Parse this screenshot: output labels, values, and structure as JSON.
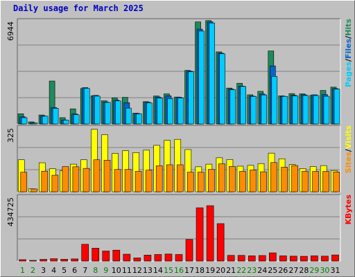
{
  "colors": {
    "hits": "#1f8a5c",
    "files": "#0066cc",
    "pages": "#00ccff",
    "visits": "#ffff00",
    "sites": "#ff8c00",
    "kbytes": "#ff0000",
    "weekend_label": "#008000",
    "weekday_label": "#000000",
    "panel_bg": "#c0c0c0"
  },
  "chart_data": {
    "type": "bar",
    "title": "Daily usage for March 2025",
    "categories": [
      "1",
      "2",
      "3",
      "4",
      "5",
      "6",
      "7",
      "8",
      "9",
      "10",
      "11",
      "12",
      "13",
      "14",
      "15",
      "16",
      "17",
      "18",
      "19",
      "20",
      "21",
      "22",
      "23",
      "24",
      "25",
      "26",
      "27",
      "28",
      "29",
      "30",
      "31"
    ],
    "weekend_days": [
      "1",
      "2",
      "8",
      "9",
      "15",
      "16",
      "22",
      "23",
      "29",
      "30"
    ],
    "panels": [
      {
        "id": "hits-files-pages",
        "ymax_label": "6944",
        "ymax": 6944,
        "legend": [
          "Pages",
          "/",
          "Files",
          "/",
          "Hits"
        ],
        "series": [
          {
            "name": "Hits",
            "values": [
              680,
              140,
              600,
              2870,
              420,
              1010,
              2370,
              1880,
              1550,
              1750,
              1780,
              720,
              1490,
              1870,
              2010,
              1800,
              3580,
              6820,
              6910,
              4820,
              2400,
              2720,
              1950,
              2180,
              4880,
              1880,
              2030,
              2010,
              1910,
              2240,
              2460
            ]
          },
          {
            "name": "Files",
            "values": [
              480,
              70,
              530,
              1100,
              270,
              670,
              2430,
              1910,
              1460,
              1590,
              1420,
              700,
              1450,
              1800,
              1880,
              1790,
              3530,
              6340,
              6830,
              4740,
              2330,
              2530,
              1870,
              2000,
              3880,
              1850,
              1920,
              1950,
              1950,
              1960,
              2360
            ]
          },
          {
            "name": "Pages",
            "values": [
              420,
              60,
              520,
              1050,
              260,
              620,
              2380,
              1860,
              1440,
              1540,
              1060,
              680,
              1410,
              1730,
              1690,
              1740,
              3490,
              6210,
              6750,
              4690,
              2290,
              2510,
              1840,
              1940,
              3180,
              1840,
              1880,
              1900,
              1900,
              1850,
              2330
            ]
          }
        ]
      },
      {
        "id": "visits-sites",
        "ymax_label": "325",
        "ymax": 325,
        "legend": [
          "Sites",
          "/",
          "Visits"
        ],
        "series": [
          {
            "name": "Visits",
            "values": [
              160,
              15,
              145,
              115,
              105,
              138,
              160,
              312,
              285,
              192,
              205,
              196,
              208,
              232,
              257,
              262,
              211,
              125,
              138,
              170,
              161,
              128,
              132,
              141,
              193,
              165,
              136,
              116,
              126,
              131,
              106
            ]
          },
          {
            "name": "Sites",
            "values": [
              98,
              14,
              103,
              83,
              126,
              125,
              117,
              160,
              158,
              112,
              112,
              102,
              108,
              130,
              135,
              135,
              98,
              98,
              112,
              140,
              127,
              102,
              109,
              100,
              146,
              123,
              131,
              103,
              102,
              102,
              99
            ]
          }
        ]
      },
      {
        "id": "kbytes",
        "ymax_label": "434725",
        "ymax": 434725,
        "legend": [
          "KBytes"
        ],
        "series": [
          {
            "name": "KBytes",
            "values": [
              9500,
              4500,
              11500,
              16000,
              12000,
              14500,
              112000,
              86000,
              67000,
              73000,
              46000,
              21000,
              40000,
              44000,
              47000,
              44000,
              144000,
              356000,
              370000,
              250000,
              38000,
              38000,
              35000,
              37000,
              55000,
              35000,
              33000,
              32000,
              35000,
              33000,
              41000
            ]
          }
        ]
      }
    ]
  }
}
